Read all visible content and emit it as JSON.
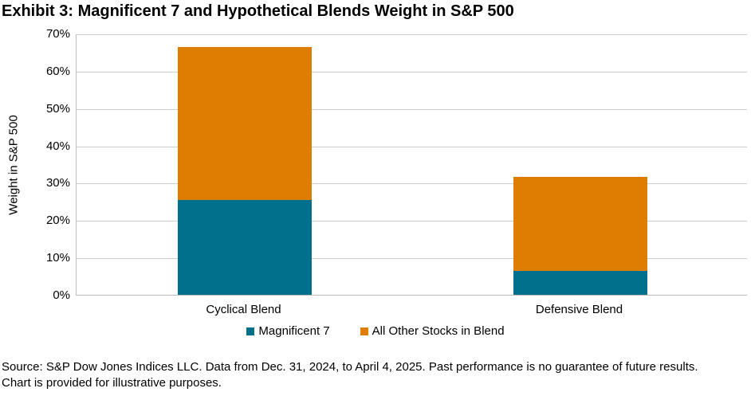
{
  "title": "Exhibit 3: Magnificent 7 and Hypothetical Blends Weight in S&P 500",
  "chart_data": {
    "type": "bar",
    "stacked": true,
    "title": "Exhibit 3: Magnificent 7 and Hypothetical Blends Weight in S&P 500",
    "categories": [
      "Cyclical Blend",
      "Defensive Blend"
    ],
    "series": [
      {
        "name": "Magnificent 7",
        "color": "#00708C",
        "values": [
          25.3,
          6.5
        ]
      },
      {
        "name": "All Other Stocks in Blend",
        "color": "#DD7D02",
        "values": [
          41.1,
          25.0
        ]
      }
    ],
    "stack_totals": [
      66.4,
      31.5
    ],
    "xlabel": "",
    "ylabel": "Weight in S&P 500",
    "ylim": [
      0,
      70
    ],
    "ytick_step": 10,
    "ytick_labels": [
      "0%",
      "10%",
      "20%",
      "30%",
      "40%",
      "50%",
      "60%",
      "70%"
    ],
    "grid": true,
    "legend_position": "bottom"
  },
  "footer": {
    "line1": "Source: S&P Dow Jones Indices LLC. Data from Dec. 31, 2024, to April 4, 2025. Past performance is no guarantee of future results.",
    "line2": "Chart is provided for illustrative purposes."
  }
}
